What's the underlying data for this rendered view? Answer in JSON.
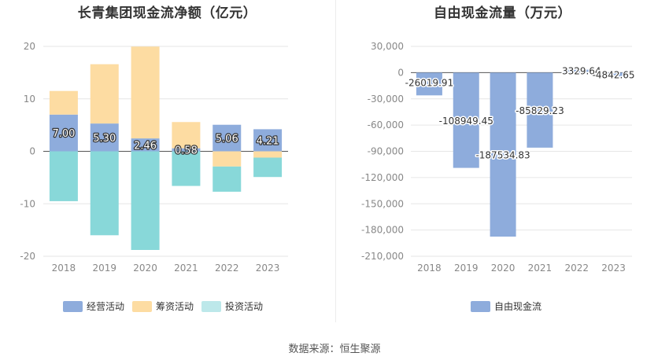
{
  "source_text": "数据来源：恒生聚源",
  "chart_data": [
    {
      "type": "bar",
      "stacked": true,
      "title": "长青集团现金流净额（亿元）",
      "categories": [
        "2018",
        "2019",
        "2020",
        "2021",
        "2022",
        "2023"
      ],
      "ylim": [
        -20,
        20
      ],
      "yticks": [
        20,
        10,
        0,
        -10,
        -20
      ],
      "grid": true,
      "legend_position": "bottom",
      "series": [
        {
          "name": "经营活动",
          "color": "#8eacdc",
          "values": [
            7.0,
            5.3,
            2.46,
            0.58,
            5.06,
            4.21
          ],
          "labels": [
            "7.00",
            "5.30",
            "2.46",
            "0.58",
            "5.06",
            "4.21"
          ]
        },
        {
          "name": "筹资活动",
          "color": "#fddca2",
          "values": [
            4.5,
            11.3,
            17.5,
            5.0,
            -2.9,
            -1.2
          ]
        },
        {
          "name": "投资活动",
          "color": "#88d8d9",
          "legend_color": "#bde8ea",
          "values": [
            -9.5,
            -16.0,
            -18.8,
            -6.6,
            -4.8,
            -3.7
          ]
        }
      ]
    },
    {
      "type": "bar",
      "title": "自由现金流量（万元）",
      "categories": [
        "2018",
        "2019",
        "2020",
        "2021",
        "2022",
        "2023"
      ],
      "ylim": [
        -210000,
        30000
      ],
      "yticks": [
        30000,
        0,
        -30000,
        -60000,
        -90000,
        -120000,
        -150000,
        -180000,
        -210000
      ],
      "ytick_labels": [
        "30,000",
        "0",
        "-30,000",
        "-60,000",
        "-90,000",
        "-120,000",
        "-150,000",
        "-180,000",
        "-210,000"
      ],
      "grid": true,
      "legend_position": "bottom",
      "series": [
        {
          "name": "自由现金流",
          "color": "#8eacdc",
          "values": [
            -26019.91,
            -108949.45,
            -187534.83,
            -85829.23,
            3329.64,
            -4842.65
          ],
          "labels": [
            "-26019.91",
            "-108949.45",
            "-187534.83",
            "-85829.23",
            "3329.64",
            "-4842.65"
          ]
        }
      ]
    }
  ]
}
